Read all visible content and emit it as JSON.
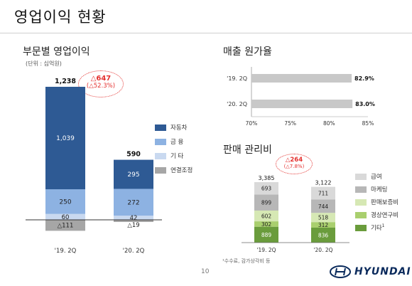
{
  "page": {
    "title": "영업이익 현황",
    "page_number": "10",
    "logo_text": "HYUNDAI",
    "footnote": "¹수수료, 감가상각비 등"
  },
  "colors": {
    "auto": "#2e5a94",
    "finance": "#8db2e2",
    "other": "#c9d9f0",
    "adjust": "#a6a6a6",
    "cost_bar": "#c8c8c8",
    "sga_salary": "#d9d9d9",
    "sga_marketing": "#b7b7b7",
    "sga_warranty": "#d6e8b4",
    "sga_rnd": "#a9cf6e",
    "sga_other": "#6a9c3c",
    "badge_red": "#e4312f"
  },
  "segment_op": {
    "title": "부문별 영업이익",
    "unit": "(단위 : 십억원)",
    "change_badge": {
      "value": "△647",
      "pct": "(△52.3%)"
    },
    "legend": [
      {
        "label": "자동차",
        "color_key": "auto"
      },
      {
        "label": "금  융",
        "color_key": "finance"
      },
      {
        "label": "기  타",
        "color_key": "other"
      },
      {
        "label": "연결조정",
        "color_key": "adjust"
      }
    ]
  },
  "cost_ratio": {
    "title": "매출 원가율"
  },
  "sga": {
    "title": "판매 관리비",
    "change_badge": {
      "value": "△264",
      "pct": "(△7.8%)"
    },
    "legend": [
      {
        "label": "급여",
        "color_key": "sga_salary"
      },
      {
        "label": "마케팅",
        "color_key": "sga_marketing"
      },
      {
        "label": "판매보증비",
        "color_key": "sga_warranty"
      },
      {
        "label": "경상연구비",
        "color_key": "sga_rnd"
      },
      {
        "label": "기타",
        "sup": "1",
        "color_key": "sga_other"
      }
    ]
  },
  "chart_data": [
    {
      "id": "segment_operating_profit",
      "type": "bar",
      "stacked": true,
      "categories": [
        "'19. 2Q",
        "'20. 2Q"
      ],
      "series": [
        {
          "name": "자동차",
          "values": [
            1039,
            295
          ],
          "labels": [
            "1,039",
            "295"
          ]
        },
        {
          "name": "금  융",
          "values": [
            250,
            272
          ],
          "labels": [
            "250",
            "272"
          ]
        },
        {
          "name": "기  타",
          "values": [
            60,
            42
          ],
          "labels": [
            "60",
            "42"
          ]
        },
        {
          "name": "연결조정",
          "values": [
            -111,
            -19
          ],
          "labels": [
            "△111",
            "△19"
          ]
        }
      ],
      "totals": [
        "1,238",
        "590"
      ],
      "grid": false
    },
    {
      "id": "cost_of_sales_ratio",
      "type": "bar",
      "orientation": "horizontal",
      "categories": [
        "'19. 2Q",
        "'20. 2Q"
      ],
      "values": [
        82.9,
        83.0
      ],
      "labels": [
        "82.9%",
        "83.0%"
      ],
      "xlim": [
        70,
        85
      ],
      "ticks": [
        "70%",
        "75%",
        "80%",
        "85%"
      ],
      "grid": false
    },
    {
      "id": "sga_expenses",
      "type": "bar",
      "stacked": true,
      "categories": [
        "'19. 2Q",
        "'20. 2Q"
      ],
      "series": [
        {
          "name": "기타",
          "values": [
            889,
            836
          ],
          "labels": [
            "889",
            "836"
          ]
        },
        {
          "name": "경상연구비",
          "values": [
            302,
            312
          ],
          "labels": [
            "302",
            "312"
          ]
        },
        {
          "name": "판매보증비",
          "values": [
            602,
            518
          ],
          "labels": [
            "602",
            "518"
          ]
        },
        {
          "name": "마케팅",
          "values": [
            899,
            744
          ],
          "labels": [
            "899",
            "744"
          ]
        },
        {
          "name": "급여",
          "values": [
            693,
            711
          ],
          "labels": [
            "693",
            "711"
          ]
        }
      ],
      "totals": [
        "3,385",
        "3,122"
      ],
      "grid": false
    }
  ]
}
